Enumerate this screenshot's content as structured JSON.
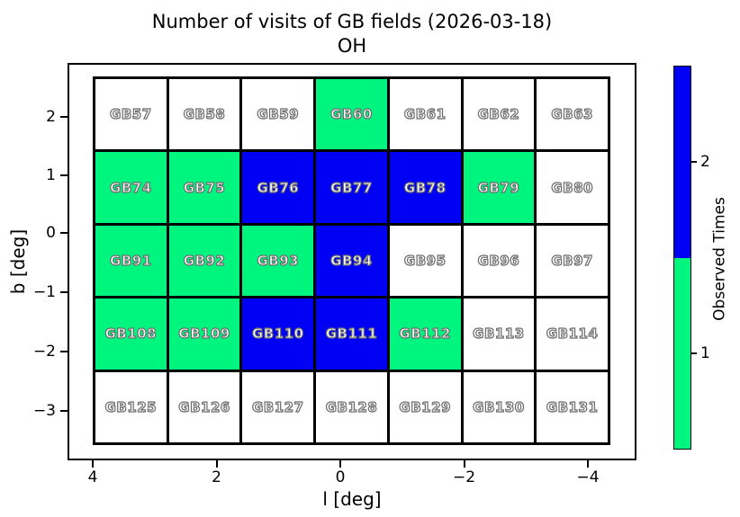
{
  "title": "Number of visits of GB fields (2026-03-18)",
  "subtitle": "OH",
  "axes": {
    "xlabel": "l [deg]",
    "ylabel": "b [deg]"
  },
  "colorbar": {
    "label": "Observed Times",
    "ticks": [
      2,
      1
    ],
    "segment_colors_top_to_bottom": [
      "#0000f5",
      "#00f57f"
    ]
  },
  "value_colors": {
    "0": "#ffffff",
    "1": "#00f57f",
    "2": "#0000f5"
  },
  "chart_data": {
    "type": "heatmap",
    "title": "Number of visits of GB fields (2026-03-18)",
    "subtitle": "OH",
    "xlabel": "l [deg]",
    "ylabel": "b [deg]",
    "x_ticks": [
      4,
      2,
      0,
      -2,
      -4
    ],
    "y_ticks": [
      2,
      1,
      0,
      -1,
      -2,
      -3
    ],
    "x_axis_reversed": true,
    "xlim": [
      4.4,
      -4.8
    ],
    "ylim": [
      -3.85,
      2.9
    ],
    "grid": false,
    "colorbar_label": "Observed Times",
    "colorbar_ticks": [
      1,
      2
    ],
    "color_mapping": {
      "0_visits": "white",
      "1_visit": "green #00f57f",
      "2_visits": "blue #0000f5"
    },
    "rows": [
      [
        {
          "name": "GB57",
          "visits": 0
        },
        {
          "name": "GB58",
          "visits": 0
        },
        {
          "name": "GB59",
          "visits": 0
        },
        {
          "name": "GB60",
          "visits": 1
        },
        {
          "name": "GB61",
          "visits": 0
        },
        {
          "name": "GB62",
          "visits": 0
        },
        {
          "name": "GB63",
          "visits": 0
        }
      ],
      [
        {
          "name": "GB74",
          "visits": 1
        },
        {
          "name": "GB75",
          "visits": 1
        },
        {
          "name": "GB76",
          "visits": 2
        },
        {
          "name": "GB77",
          "visits": 2
        },
        {
          "name": "GB78",
          "visits": 2
        },
        {
          "name": "GB79",
          "visits": 1
        },
        {
          "name": "GB80",
          "visits": 0
        }
      ],
      [
        {
          "name": "GB91",
          "visits": 1
        },
        {
          "name": "GB92",
          "visits": 1
        },
        {
          "name": "GB93",
          "visits": 1
        },
        {
          "name": "GB94",
          "visits": 2
        },
        {
          "name": "GB95",
          "visits": 0
        },
        {
          "name": "GB96",
          "visits": 0
        },
        {
          "name": "GB97",
          "visits": 0
        }
      ],
      [
        {
          "name": "GB108",
          "visits": 1
        },
        {
          "name": "GB109",
          "visits": 1
        },
        {
          "name": "GB110",
          "visits": 2
        },
        {
          "name": "GB111",
          "visits": 2
        },
        {
          "name": "GB112",
          "visits": 1
        },
        {
          "name": "GB113",
          "visits": 0
        },
        {
          "name": "GB114",
          "visits": 0
        }
      ],
      [
        {
          "name": "GB125",
          "visits": 0
        },
        {
          "name": "GB126",
          "visits": 0
        },
        {
          "name": "GB127",
          "visits": 0
        },
        {
          "name": "GB128",
          "visits": 0
        },
        {
          "name": "GB129",
          "visits": 0
        },
        {
          "name": "GB130",
          "visits": 0
        },
        {
          "name": "GB131",
          "visits": 0
        }
      ]
    ]
  }
}
